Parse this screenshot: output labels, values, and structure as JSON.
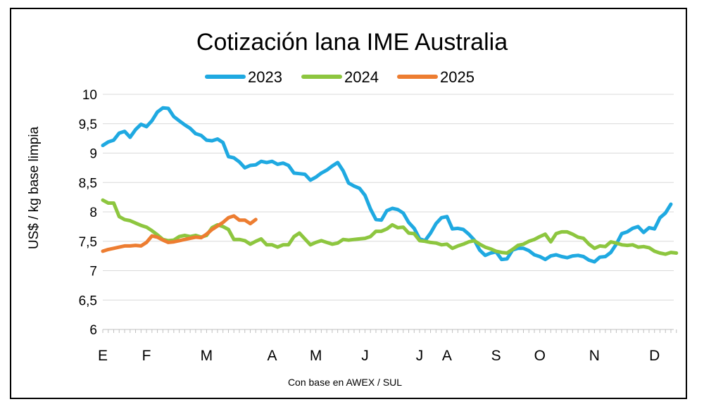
{
  "chart_data": {
    "type": "line",
    "title": "Cotización lana IME Australia",
    "ylabel": "US$ / kg base limpia",
    "xlabel": "Con base en AWEX / SUL",
    "ylim": [
      6,
      10
    ],
    "yticks": [
      "6",
      "6,5",
      "7",
      "7,5",
      "8",
      "8,5",
      "9",
      "9,5",
      "10"
    ],
    "x_unit": "week",
    "xlim": [
      1,
      53
    ],
    "month_labels": [
      {
        "label": "E",
        "week": 1
      },
      {
        "label": "F",
        "week": 5
      },
      {
        "label": "M",
        "week": 10.5
      },
      {
        "label": "A",
        "week": 16.5
      },
      {
        "label": "M",
        "week": 20.5
      },
      {
        "label": "J",
        "week": 25
      },
      {
        "label": "J",
        "week": 30
      },
      {
        "label": "A",
        "week": 32.5
      },
      {
        "label": "S",
        "week": 37
      },
      {
        "label": "O",
        "week": 41
      },
      {
        "label": "N",
        "week": 46
      },
      {
        "label": "D",
        "week": 51.5
      }
    ],
    "grid": true,
    "legend_position": "top-center",
    "series": [
      {
        "name": "2023",
        "color": "#1fa9e1",
        "points": [
          [
            1,
            9.13
          ],
          [
            1.5,
            9.19
          ],
          [
            2,
            9.22
          ],
          [
            2.5,
            9.34
          ],
          [
            3,
            9.37
          ],
          [
            3.5,
            9.27
          ],
          [
            4,
            9.4
          ],
          [
            4.5,
            9.49
          ],
          [
            5,
            9.45
          ],
          [
            5.5,
            9.55
          ],
          [
            6,
            9.7
          ],
          [
            6.5,
            9.77
          ],
          [
            7,
            9.76
          ],
          [
            7.5,
            9.62
          ],
          [
            8,
            9.55
          ],
          [
            8.5,
            9.48
          ],
          [
            9,
            9.42
          ],
          [
            9.5,
            9.33
          ],
          [
            10,
            9.3
          ],
          [
            10.5,
            9.22
          ],
          [
            11,
            9.21
          ],
          [
            11.5,
            9.24
          ],
          [
            12,
            9.18
          ],
          [
            12.5,
            8.94
          ],
          [
            13,
            8.92
          ],
          [
            13.5,
            8.85
          ],
          [
            14,
            8.75
          ],
          [
            14.5,
            8.79
          ],
          [
            15,
            8.8
          ],
          [
            15.5,
            8.86
          ],
          [
            16,
            8.84
          ],
          [
            16.5,
            8.86
          ],
          [
            17,
            8.81
          ],
          [
            17.5,
            8.83
          ],
          [
            18,
            8.79
          ],
          [
            18.5,
            8.66
          ],
          [
            19,
            8.65
          ],
          [
            19.5,
            8.64
          ],
          [
            20,
            8.54
          ],
          [
            20.5,
            8.59
          ],
          [
            21,
            8.66
          ],
          [
            21.5,
            8.71
          ],
          [
            22,
            8.78
          ],
          [
            22.5,
            8.84
          ],
          [
            23,
            8.7
          ],
          [
            23.5,
            8.49
          ],
          [
            24,
            8.44
          ],
          [
            24.5,
            8.4
          ],
          [
            25,
            8.28
          ],
          [
            25.5,
            8.05
          ],
          [
            26,
            7.87
          ],
          [
            26.5,
            7.86
          ],
          [
            27,
            8.02
          ],
          [
            27.5,
            8.06
          ],
          [
            28,
            8.04
          ],
          [
            28.5,
            7.98
          ],
          [
            29,
            7.82
          ],
          [
            29.5,
            7.72
          ],
          [
            30,
            7.54
          ],
          [
            30.5,
            7.51
          ],
          [
            31,
            7.64
          ],
          [
            31.5,
            7.8
          ],
          [
            32,
            7.9
          ],
          [
            32.5,
            7.92
          ],
          [
            33,
            7.71
          ],
          [
            33.5,
            7.72
          ],
          [
            34,
            7.7
          ],
          [
            34.5,
            7.62
          ],
          [
            35,
            7.52
          ],
          [
            35.5,
            7.35
          ],
          [
            36,
            7.26
          ],
          [
            36.5,
            7.3
          ],
          [
            37,
            7.32
          ],
          [
            37.5,
            7.19
          ],
          [
            38,
            7.2
          ],
          [
            38.5,
            7.35
          ],
          [
            39,
            7.38
          ],
          [
            39.5,
            7.38
          ],
          [
            40,
            7.34
          ],
          [
            40.5,
            7.27
          ],
          [
            41,
            7.24
          ],
          [
            41.5,
            7.19
          ],
          [
            42,
            7.25
          ],
          [
            42.5,
            7.27
          ],
          [
            43,
            7.24
          ],
          [
            43.5,
            7.22
          ],
          [
            44,
            7.25
          ],
          [
            44.5,
            7.26
          ],
          [
            45,
            7.24
          ],
          [
            45.5,
            7.18
          ],
          [
            46,
            7.15
          ],
          [
            46.5,
            7.23
          ],
          [
            47,
            7.24
          ],
          [
            47.5,
            7.31
          ],
          [
            48,
            7.45
          ],
          [
            48.5,
            7.63
          ],
          [
            49,
            7.66
          ],
          [
            49.5,
            7.72
          ],
          [
            50,
            7.75
          ],
          [
            50.5,
            7.65
          ],
          [
            51,
            7.73
          ],
          [
            51.5,
            7.71
          ],
          [
            52,
            7.9
          ],
          [
            52.5,
            7.98
          ],
          [
            53,
            8.13
          ]
        ]
      },
      {
        "name": "2024",
        "color": "#8dc63f",
        "points": [
          [
            1,
            8.2
          ],
          [
            1.5,
            8.15
          ],
          [
            2,
            8.15
          ],
          [
            2.5,
            7.92
          ],
          [
            3,
            7.87
          ],
          [
            3.5,
            7.85
          ],
          [
            4,
            7.81
          ],
          [
            4.5,
            7.77
          ],
          [
            5,
            7.74
          ],
          [
            5.5,
            7.68
          ],
          [
            6,
            7.61
          ],
          [
            6.5,
            7.53
          ],
          [
            7,
            7.51
          ],
          [
            7.5,
            7.52
          ],
          [
            8,
            7.58
          ],
          [
            8.5,
            7.6
          ],
          [
            9,
            7.58
          ],
          [
            9.5,
            7.6
          ],
          [
            10,
            7.57
          ],
          [
            10.5,
            7.6
          ],
          [
            11,
            7.73
          ],
          [
            11.5,
            7.78
          ],
          [
            12,
            7.75
          ],
          [
            12.5,
            7.7
          ],
          [
            13,
            7.53
          ],
          [
            13.5,
            7.53
          ],
          [
            14,
            7.51
          ],
          [
            14.5,
            7.45
          ],
          [
            15,
            7.5
          ],
          [
            15.5,
            7.54
          ],
          [
            16,
            7.44
          ],
          [
            16.5,
            7.44
          ],
          [
            17,
            7.4
          ],
          [
            17.5,
            7.44
          ],
          [
            18,
            7.44
          ],
          [
            18.5,
            7.58
          ],
          [
            19,
            7.64
          ],
          [
            19.5,
            7.54
          ],
          [
            20,
            7.44
          ],
          [
            20.5,
            7.48
          ],
          [
            21,
            7.51
          ],
          [
            21.5,
            7.48
          ],
          [
            22,
            7.45
          ],
          [
            22.5,
            7.47
          ],
          [
            23,
            7.53
          ],
          [
            23.5,
            7.52
          ],
          [
            24,
            7.53
          ],
          [
            24.5,
            7.54
          ],
          [
            25,
            7.55
          ],
          [
            25.5,
            7.58
          ],
          [
            26,
            7.67
          ],
          [
            26.5,
            7.67
          ],
          [
            27,
            7.71
          ],
          [
            27.5,
            7.78
          ],
          [
            28,
            7.73
          ],
          [
            28.5,
            7.74
          ],
          [
            29,
            7.64
          ],
          [
            29.5,
            7.63
          ],
          [
            30,
            7.51
          ],
          [
            30.5,
            7.5
          ],
          [
            31,
            7.48
          ],
          [
            31.5,
            7.47
          ],
          [
            32,
            7.44
          ],
          [
            32.5,
            7.45
          ],
          [
            33,
            7.38
          ],
          [
            33.5,
            7.42
          ],
          [
            34,
            7.45
          ],
          [
            34.5,
            7.49
          ],
          [
            35,
            7.51
          ],
          [
            35.5,
            7.45
          ],
          [
            36,
            7.4
          ],
          [
            36.5,
            7.37
          ],
          [
            37,
            7.33
          ],
          [
            37.5,
            7.31
          ],
          [
            38,
            7.3
          ],
          [
            38.5,
            7.36
          ],
          [
            39,
            7.43
          ],
          [
            39.5,
            7.45
          ],
          [
            40,
            7.5
          ],
          [
            40.5,
            7.53
          ],
          [
            41,
            7.58
          ],
          [
            41.5,
            7.62
          ],
          [
            42,
            7.49
          ],
          [
            42.5,
            7.63
          ],
          [
            43,
            7.66
          ],
          [
            43.5,
            7.66
          ],
          [
            44,
            7.62
          ],
          [
            44.5,
            7.57
          ],
          [
            45,
            7.55
          ],
          [
            45.5,
            7.45
          ],
          [
            46,
            7.38
          ],
          [
            46.5,
            7.42
          ],
          [
            47,
            7.41
          ],
          [
            47.5,
            7.49
          ],
          [
            48,
            7.47
          ],
          [
            48.5,
            7.44
          ],
          [
            49,
            7.43
          ],
          [
            49.5,
            7.44
          ],
          [
            50,
            7.4
          ],
          [
            50.5,
            7.41
          ],
          [
            51,
            7.39
          ],
          [
            51.5,
            7.33
          ],
          [
            52,
            7.3
          ],
          [
            52.5,
            7.28
          ],
          [
            53,
            7.31
          ],
          [
            53.5,
            7.3
          ]
        ]
      },
      {
        "name": "2025",
        "color": "#ed7d31",
        "points": [
          [
            1,
            7.33
          ],
          [
            1.5,
            7.36
          ],
          [
            2,
            7.38
          ],
          [
            2.5,
            7.4
          ],
          [
            3,
            7.42
          ],
          [
            3.5,
            7.42
          ],
          [
            4,
            7.43
          ],
          [
            4.5,
            7.42
          ],
          [
            5,
            7.48
          ],
          [
            5.5,
            7.59
          ],
          [
            6,
            7.57
          ],
          [
            6.5,
            7.52
          ],
          [
            7,
            7.48
          ],
          [
            7.5,
            7.49
          ],
          [
            8,
            7.51
          ],
          [
            8.5,
            7.53
          ],
          [
            9,
            7.55
          ],
          [
            9.5,
            7.57
          ],
          [
            10,
            7.56
          ],
          [
            10.5,
            7.62
          ],
          [
            11,
            7.7
          ],
          [
            11.5,
            7.76
          ],
          [
            12,
            7.82
          ],
          [
            12.5,
            7.9
          ],
          [
            13,
            7.93
          ],
          [
            13.5,
            7.86
          ],
          [
            14,
            7.86
          ],
          [
            14.5,
            7.8
          ],
          [
            15,
            7.87
          ]
        ]
      }
    ]
  }
}
